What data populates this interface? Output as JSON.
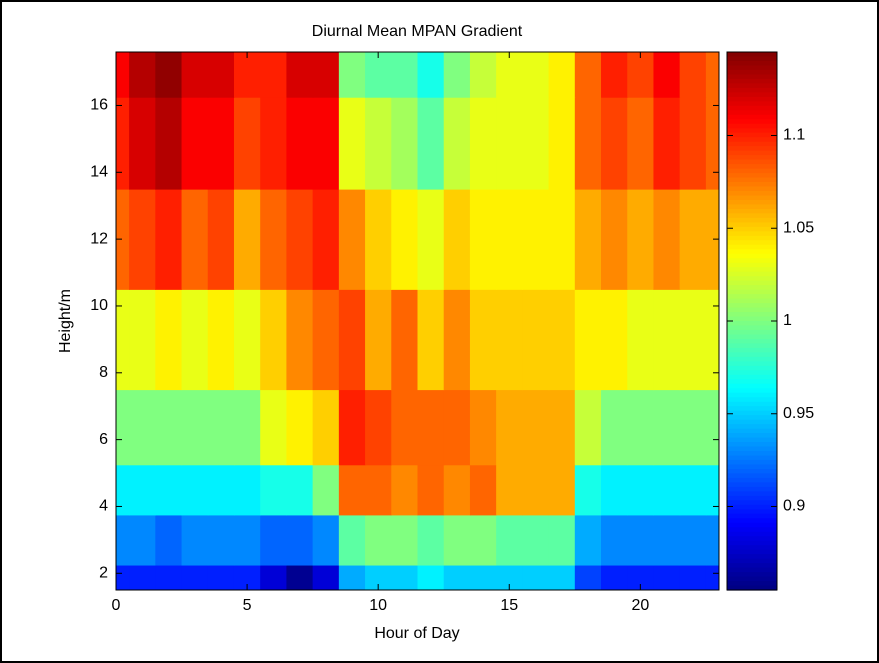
{
  "chart_data": {
    "type": "heatmap",
    "title": "Diurnal Mean MPAN Gradient",
    "x_label": "Hour of Day",
    "y_label": "Height/m",
    "x": [
      0,
      1,
      2,
      3,
      4,
      5,
      6,
      7,
      8,
      9,
      10,
      11,
      12,
      13,
      14,
      15,
      16,
      17,
      18,
      19,
      20,
      21,
      22,
      23
    ],
    "y": [
      1.5,
      3,
      4.5,
      6,
      9,
      12,
      15,
      17.5
    ],
    "z": [
      [
        0.9,
        0.9,
        0.9,
        0.9,
        0.9,
        0.9,
        0.88,
        0.86,
        0.88,
        0.94,
        0.95,
        0.95,
        0.96,
        0.95,
        0.95,
        0.95,
        0.95,
        0.95,
        0.91,
        0.9,
        0.9,
        0.9,
        0.9,
        0.9
      ],
      [
        0.93,
        0.93,
        0.92,
        0.93,
        0.93,
        0.93,
        0.92,
        0.92,
        0.93,
        0.99,
        1.0,
        1.0,
        0.99,
        1.0,
        1.0,
        0.99,
        0.99,
        0.99,
        0.94,
        0.93,
        0.93,
        0.93,
        0.93,
        0.93
      ],
      [
        0.96,
        0.96,
        0.96,
        0.96,
        0.96,
        0.96,
        0.97,
        0.97,
        1.0,
        1.08,
        1.08,
        1.07,
        1.08,
        1.07,
        1.08,
        1.06,
        1.06,
        1.06,
        0.97,
        0.96,
        0.96,
        0.96,
        0.96,
        0.96
      ],
      [
        1.0,
        1.0,
        1.0,
        1.0,
        1.0,
        1.0,
        1.03,
        1.04,
        1.05,
        1.1,
        1.09,
        1.08,
        1.08,
        1.08,
        1.07,
        1.06,
        1.06,
        1.06,
        1.02,
        1.0,
        1.0,
        1.0,
        1.0,
        1.0
      ],
      [
        1.03,
        1.03,
        1.04,
        1.03,
        1.04,
        1.03,
        1.05,
        1.07,
        1.08,
        1.09,
        1.06,
        1.08,
        1.05,
        1.07,
        1.05,
        1.05,
        1.05,
        1.05,
        1.04,
        1.04,
        1.03,
        1.03,
        1.03,
        1.03
      ],
      [
        1.08,
        1.09,
        1.1,
        1.08,
        1.09,
        1.06,
        1.08,
        1.09,
        1.1,
        1.07,
        1.05,
        1.04,
        1.03,
        1.05,
        1.04,
        1.04,
        1.04,
        1.04,
        1.06,
        1.07,
        1.06,
        1.07,
        1.06,
        1.06
      ],
      [
        1.1,
        1.12,
        1.13,
        1.11,
        1.11,
        1.09,
        1.1,
        1.11,
        1.11,
        1.03,
        1.02,
        1.01,
        0.99,
        1.02,
        1.03,
        1.03,
        1.03,
        1.04,
        1.08,
        1.09,
        1.08,
        1.1,
        1.09,
        1.08
      ],
      [
        1.11,
        1.13,
        1.14,
        1.12,
        1.12,
        1.1,
        1.1,
        1.12,
        1.12,
        1.0,
        0.99,
        0.99,
        0.97,
        1.0,
        1.02,
        1.03,
        1.03,
        1.04,
        1.08,
        1.1,
        1.09,
        1.11,
        1.09,
        1.08
      ]
    ],
    "xlim": [
      0,
      23
    ],
    "ylim": [
      1.5,
      17.6
    ],
    "xticks": [
      0,
      5,
      10,
      15,
      20
    ],
    "yticks": [
      2,
      4,
      6,
      8,
      10,
      12,
      14,
      16
    ],
    "clim": [
      0.855,
      1.145
    ],
    "cticks": [
      0.9,
      0.95,
      1,
      1.05,
      1.1
    ],
    "colormap": "jet"
  }
}
